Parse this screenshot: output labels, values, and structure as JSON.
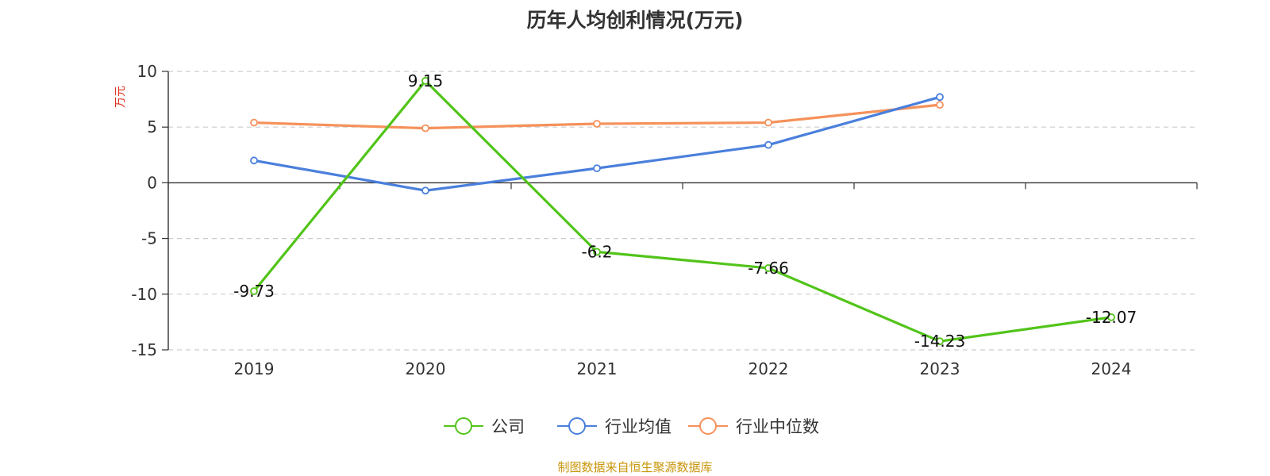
{
  "chart_data": {
    "type": "line",
    "title": "历年人均创利情况(万元)",
    "ylabel": "万元",
    "categories": [
      "2019",
      "2020",
      "2021",
      "2022",
      "2023",
      "2024"
    ],
    "ylim": [
      -15,
      10
    ],
    "yticks": [
      10,
      5,
      0,
      -5,
      -10,
      -15
    ],
    "grid": true,
    "legend_position": "bottom",
    "series": [
      {
        "name": "公司",
        "color": "#52c41a",
        "values": [
          -9.73,
          9.15,
          -6.2,
          -7.66,
          -14.23,
          -12.07
        ],
        "labels": [
          "-9.73",
          "9.15",
          "-6.2",
          "-7.66",
          "-14.23",
          "-12.07"
        ]
      },
      {
        "name": "行业均值",
        "color": "#4a7fdc",
        "values": [
          2.0,
          -0.7,
          1.3,
          3.4,
          7.7,
          null
        ]
      },
      {
        "name": "行业中位数",
        "color": "#f5915a",
        "values": [
          5.4,
          4.9,
          5.3,
          5.4,
          7.0,
          null
        ]
      }
    ],
    "ylabel_color": "#e0301e"
  },
  "footer": {
    "source": "制图数据来自恒生聚源数据库",
    "color": "#c8960c"
  }
}
